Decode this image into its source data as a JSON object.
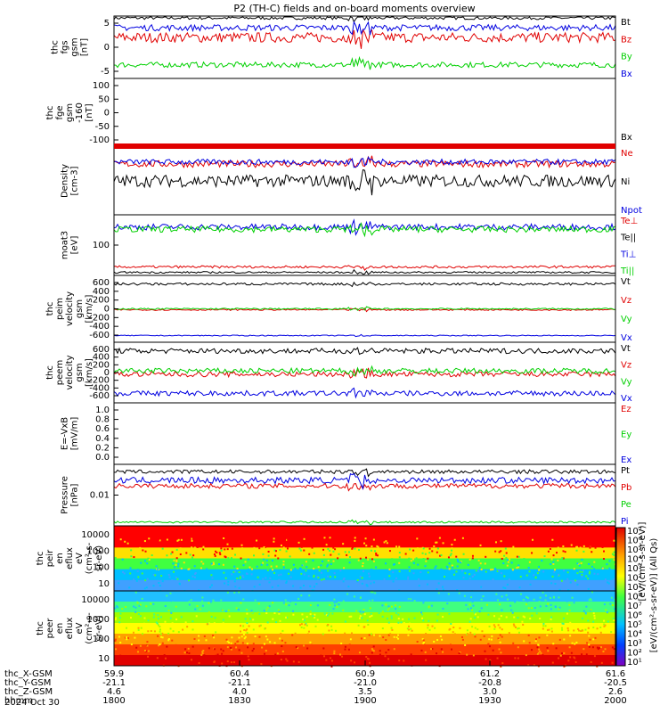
{
  "title": "P2 (TH-C) fields and on-board moments overview",
  "colors": {
    "black": "#000000",
    "red": "#e00000",
    "green": "#00d000",
    "blue": "#0000e0"
  },
  "chart_data": [
    {
      "type": "line",
      "ylabel": [
        "thc",
        "fgs",
        "gsm",
        "[nT]"
      ],
      "yticks": [
        "5",
        "0",
        "-5"
      ],
      "ylim": [
        -8,
        8
      ],
      "series": [
        {
          "name": "Bt",
          "color": "#000000",
          "level": 7.5,
          "noise": 0.4
        },
        {
          "name": "Bz",
          "color": "#e00000",
          "level": 2.5,
          "noise": 1.3
        },
        {
          "name": "By",
          "color": "#00d000",
          "level": -4.5,
          "noise": 0.7
        },
        {
          "name": "Bx",
          "color": "#0000e0",
          "level": 5.0,
          "noise": 0.8
        }
      ]
    },
    {
      "type": "line",
      "ylabel": [
        "thc",
        "fge",
        "gsm",
        "-160",
        "[nT]"
      ],
      "yticks": [
        "100",
        "50",
        "0",
        "-50",
        "-100"
      ],
      "ylim": [
        -130,
        120
      ],
      "series": [
        {
          "name": "Bx",
          "color": "#000000",
          "level": -128,
          "noise": 0.6
        }
      ]
    },
    {
      "type": "line",
      "ylabel": [
        "Density",
        "[cm-3]"
      ],
      "yticks": [],
      "ylim": [
        0,
        10
      ],
      "series": [
        {
          "name": "Ne",
          "color": "#e00000",
          "level": 7.5,
          "noise": 0.5
        },
        {
          "name": "Ni",
          "color": "#000000",
          "level": 5.0,
          "noise": 0.9
        },
        {
          "name": "Npot",
          "color": "#0000e0",
          "level": 7.8,
          "noise": 0.4
        }
      ]
    },
    {
      "type": "line",
      "ylabel": [
        "moat3",
        "[eV]"
      ],
      "yticks": [
        "100"
      ],
      "ylim": [
        0,
        10
      ],
      "series": [
        {
          "name": "Te⊥",
          "color": "#e00000",
          "level": 1.4,
          "noise": 0.2
        },
        {
          "name": "Te||",
          "color": "#000000",
          "level": 0.5,
          "noise": 0.15
        },
        {
          "name": "Ti⊥",
          "color": "#0000e0",
          "level": 8.0,
          "noise": 0.5
        },
        {
          "name": "Ti||",
          "color": "#00d000",
          "level": 7.6,
          "noise": 0.5
        }
      ]
    },
    {
      "type": "line",
      "ylabel": [
        "thc",
        "peim",
        "velocity",
        "gsm",
        "[km/s]"
      ],
      "yticks": [
        "600",
        "400",
        "200",
        "0",
        "-200",
        "-400",
        "-600"
      ],
      "ylim": [
        -700,
        700
      ],
      "series": [
        {
          "name": "Vt",
          "color": "#000000",
          "level": 520,
          "noise": 25
        },
        {
          "name": "Vz",
          "color": "#e00000",
          "level": -20,
          "noise": 15
        },
        {
          "name": "Vy",
          "color": "#00d000",
          "level": 0,
          "noise": 15
        },
        {
          "name": "Vx",
          "color": "#0000e0",
          "level": -560,
          "noise": 10
        }
      ]
    },
    {
      "type": "line",
      "ylabel": [
        "thc",
        "peem",
        "velocity",
        "gsm",
        "[km/s]"
      ],
      "yticks": [
        "600",
        "400",
        "200",
        "0",
        "-200",
        "-400",
        "-600"
      ],
      "ylim": [
        -700,
        700
      ],
      "series": [
        {
          "name": "Vt",
          "color": "#000000",
          "level": 500,
          "noise": 60
        },
        {
          "name": "Vz",
          "color": "#e00000",
          "level": -40,
          "noise": 60
        },
        {
          "name": "Vy",
          "color": "#00d000",
          "level": 40,
          "noise": 60
        },
        {
          "name": "Vx",
          "color": "#0000e0",
          "level": -480,
          "noise": 60
        }
      ]
    },
    {
      "type": "line",
      "ylabel": [
        "E=-VxB",
        "[mV/m]"
      ],
      "yticks": [
        "1.0",
        "0.8",
        "0.6",
        "0.4",
        "0.2",
        "0.0"
      ],
      "ylim": [
        -0.05,
        1.05
      ],
      "series": [
        {
          "name": "Ez",
          "color": "#e00000",
          "level": null,
          "noise": 0
        },
        {
          "name": "Ey",
          "color": "#00d000",
          "level": null,
          "noise": 0
        },
        {
          "name": "Ex",
          "color": "#0000e0",
          "level": null,
          "noise": 0
        }
      ]
    },
    {
      "type": "line",
      "ylabel": [
        "Pressure",
        "[nPa]"
      ],
      "yticks": [
        "0.01"
      ],
      "ylim": [
        0,
        10
      ],
      "series": [
        {
          "name": "Pt",
          "color": "#000000",
          "level": 8.8,
          "noise": 0.3
        },
        {
          "name": "Pb",
          "color": "#e00000",
          "level": 6.5,
          "noise": 0.4
        },
        {
          "name": "Pe",
          "color": "#00d000",
          "level": 0.6,
          "noise": 0.15
        },
        {
          "name": "Pi",
          "color": "#0000e0",
          "level": 7.4,
          "noise": 0.5
        }
      ]
    },
    {
      "type": "heatmap",
      "ylabel": [
        "thc",
        "peir",
        "en",
        "eflux",
        "eV",
        "(cm²-s-",
        "sr-eV)"
      ],
      "yticks": [
        "10000",
        "1000",
        "100",
        "10"
      ],
      "bands": [
        "#ff0000",
        "#ff0000",
        "#ffe000",
        "#40ff40",
        "#00c0ff",
        "#40a0ff"
      ]
    },
    {
      "type": "heatmap",
      "ylabel": [
        "thc",
        "peer",
        "en",
        "eflux",
        "eV",
        "(cm²-s-",
        "sr-eV)"
      ],
      "yticks": [
        "10000",
        "1000",
        "100",
        "10"
      ],
      "bands": [
        "#20c0ff",
        "#40ff80",
        "#a0ff00",
        "#ffff00",
        "#ffa000",
        "#ff4000",
        "#e00000"
      ]
    }
  ],
  "colorbar": {
    "ticks": [
      "10⁷",
      "10⁶",
      "10⁵",
      "10⁴",
      "10³",
      "10²",
      "10¹",
      "10⁸",
      "10⁷",
      "10⁶",
      "10⁵",
      "10⁴",
      "10³",
      "10²",
      "10¹"
    ],
    "label": "[eV/(cm²-s-sr-eV)] (All Qs)",
    "label_inner": "[eV/(cm²-s-sr-eV)]"
  },
  "xaxis": {
    "rows": [
      {
        "label": "thc_X-GSM",
        "values": [
          "59.9",
          "60.4",
          "60.9",
          "61.2",
          "61.6"
        ]
      },
      {
        "label": "thc_Y-GSM",
        "values": [
          "-21.1",
          "-21.1",
          "-21.0",
          "-20.8",
          "-20.5"
        ]
      },
      {
        "label": "thc_Z-GSM",
        "values": [
          "4.6",
          "4.0",
          "3.5",
          "3.0",
          "2.6"
        ]
      },
      {
        "label": "hhmm",
        "values": [
          "1800",
          "1830",
          "1900",
          "1930",
          "2000"
        ]
      }
    ],
    "date": "2024 Oct 30"
  }
}
